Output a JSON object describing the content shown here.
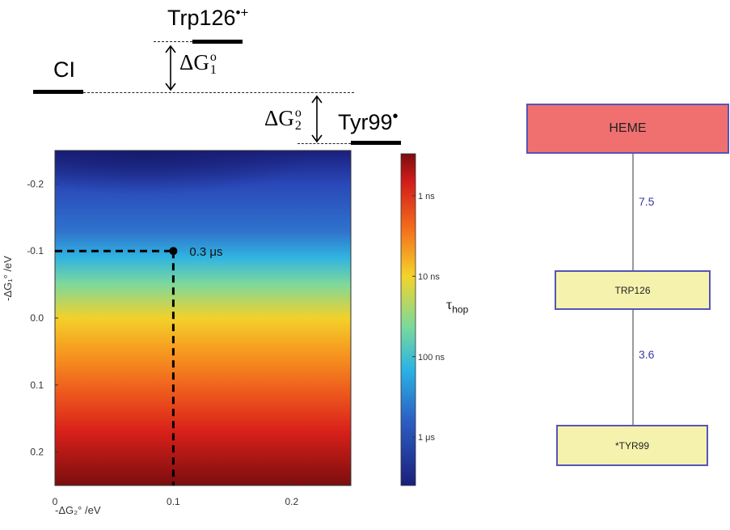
{
  "energy_diagram": {
    "levels": {
      "ci": "CI",
      "trp": "Trp126",
      "trp_sup": "•+",
      "tyr": "Tyr99",
      "tyr_sup": "•"
    },
    "delta_g1": {
      "symbol": "ΔG",
      "sup": "o",
      "sub": "1"
    },
    "delta_g2": {
      "symbol": "ΔG",
      "sup": "o",
      "sub": "2"
    }
  },
  "chart_data": {
    "type": "heatmap",
    "xlabel": "-ΔG₂° /eV",
    "ylabel": "-ΔG₁° /eV",
    "xlim": [
      0,
      0.25
    ],
    "ylim": [
      -0.25,
      0.25
    ],
    "y_inverted": true,
    "x_ticks": [
      "0",
      "0.1",
      "0.2"
    ],
    "x_tick_values": [
      0,
      0.1,
      0.2
    ],
    "y_ticks": [
      "-0.2",
      "-0.1",
      "0.0",
      "0.1",
      "0.2"
    ],
    "y_tick_values": [
      -0.2,
      -0.1,
      0.0,
      0.1,
      0.2
    ],
    "colorbar": {
      "label": "τ",
      "label_sub": "hop",
      "scale": "log",
      "ticks": [
        "1 ns",
        "10 ns",
        "100 ns",
        "1 μs"
      ],
      "tick_values_s": [
        1e-09,
        1e-08,
        1e-07,
        1e-06
      ],
      "range_s": [
        3e-10,
        4e-06
      ]
    },
    "marker": {
      "x": 0.1,
      "y": -0.1,
      "label": "0.3 μs"
    },
    "colormap": "jet",
    "gradient_stops": [
      {
        "y": -0.25,
        "color": "#1a1f7c"
      },
      {
        "y": -0.2,
        "color": "#2a48b8"
      },
      {
        "y": -0.13,
        "color": "#2f72cc"
      },
      {
        "y": -0.09,
        "color": "#31b4e0"
      },
      {
        "y": -0.05,
        "color": "#7fd99a"
      },
      {
        "y": 0.0,
        "color": "#f2d12a"
      },
      {
        "y": 0.05,
        "color": "#f79a20"
      },
      {
        "y": 0.11,
        "color": "#ee5a1d"
      },
      {
        "y": 0.17,
        "color": "#d8201a"
      },
      {
        "y": 0.25,
        "color": "#7a0e0e"
      }
    ]
  },
  "pathway": {
    "nodes": [
      "HEME",
      "TRP126",
      "*TYR99"
    ],
    "distances": [
      "7.5",
      "3.6"
    ],
    "colors": {
      "heme": "#f07070",
      "residue": "#f5f2ad",
      "border": "#5555b8",
      "distance_text": "#3a3aa8"
    }
  }
}
